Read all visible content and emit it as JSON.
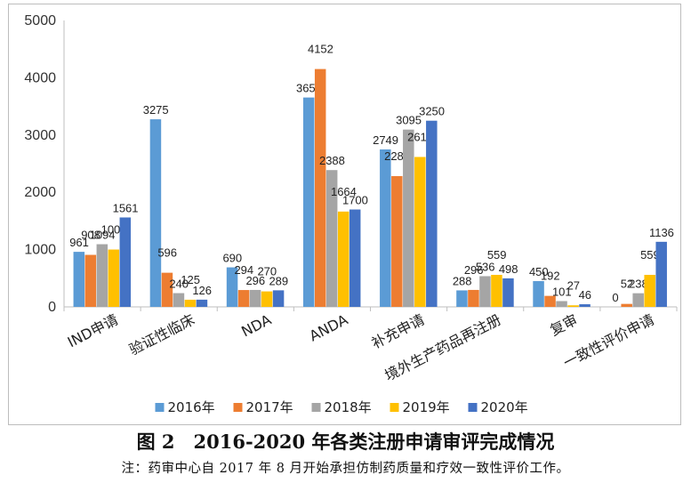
{
  "figure": {
    "title": "图 2　2016-2020 年各类注册申请审评完成情况",
    "note": "注：药审中心自 2017 年 8 月开始承担仿制药质量和疗效一致性评价工作。"
  },
  "chart_data": {
    "type": "bar",
    "categories": [
      "IND申请",
      "验证性临床",
      "NDA",
      "ANDA",
      "补充申请",
      "境外生产药品再注册",
      "复审",
      "一致性评价申请"
    ],
    "series": [
      {
        "name": "2016年",
        "color": "#5b9bd5",
        "values": [
          961,
          3275,
          690,
          3655,
          2749,
          288,
          450,
          0
        ]
      },
      {
        "name": "2017年",
        "color": "#ed7d31",
        "values": [
          908,
          596,
          294,
          4152,
          2283,
          296,
          192,
          52
        ]
      },
      {
        "name": "2018年",
        "color": "#a5a5a5",
        "values": [
          1094,
          240,
          296,
          2388,
          3095,
          536,
          101,
          238
        ]
      },
      {
        "name": "2019年",
        "color": "#ffc000",
        "values": [
          1001,
          125,
          270,
          1664,
          2617,
          559,
          27,
          559
        ]
      },
      {
        "name": "2020年",
        "color": "#4472c4",
        "values": [
          1561,
          126,
          289,
          1700,
          3250,
          498,
          46,
          1136
        ]
      }
    ],
    "yticks": [
      0,
      1000,
      2000,
      3000,
      4000,
      5000
    ],
    "ylim": [
      0,
      5000
    ],
    "grid": false,
    "legend_position": "bottom"
  }
}
